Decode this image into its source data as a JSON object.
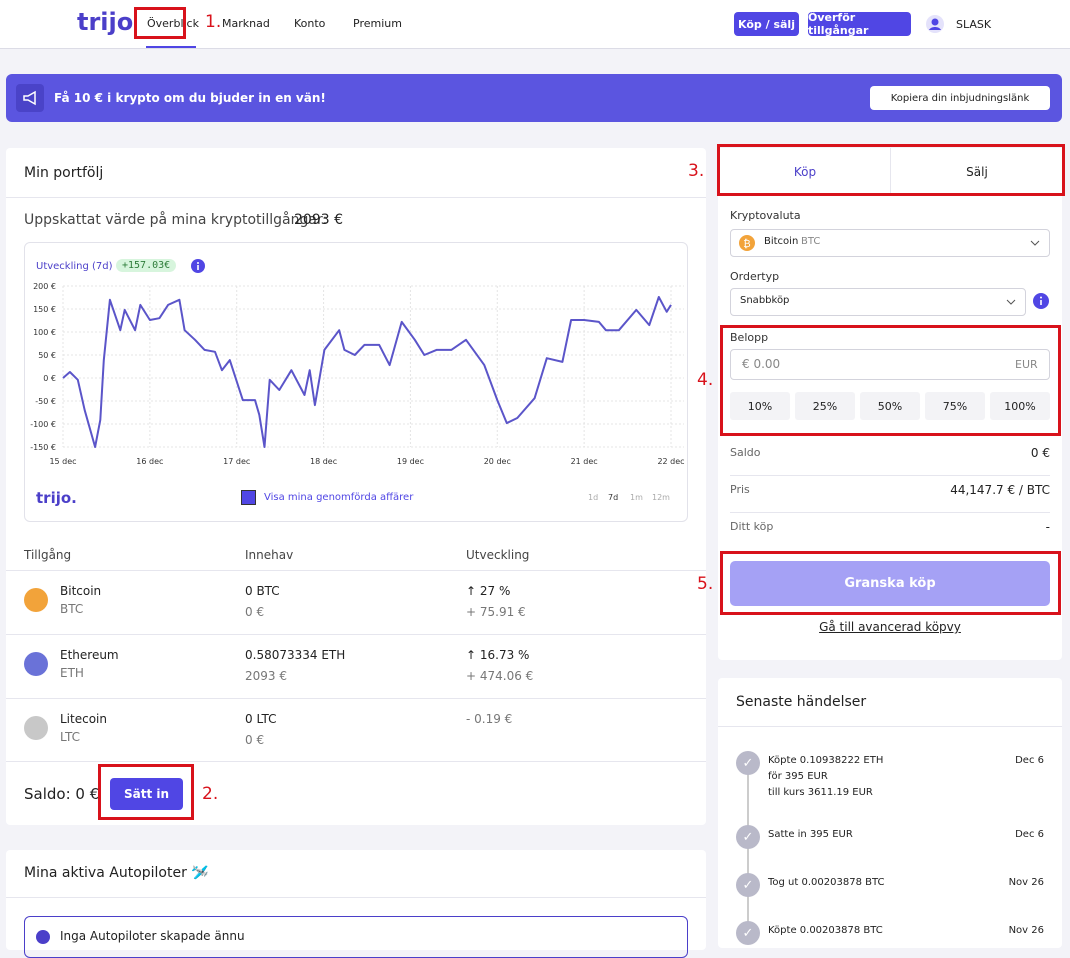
{
  "nav": {
    "logo": "trijo",
    "links": [
      "Överblick",
      "Marknad",
      "Konto",
      "Premium"
    ],
    "buttons": [
      "Köp / sälj",
      "Överför tillgångar"
    ],
    "user": "SLASK"
  },
  "banner": {
    "text": "Få 10 € i krypto om du bjuder in en vän!",
    "button": "Kopiera din inbjudningslänk"
  },
  "portfolio": {
    "title": "Min portfölj",
    "estimate": "Uppskattat värde på mina kryptotillgångar:",
    "estimate_value": "2093 €",
    "chart": {
      "type": "line",
      "label": "Utveckling (7d)",
      "badge": "+157.03€",
      "logo": "trijo.",
      "checkbox": "Visa mina genomförda affärer",
      "periods": [
        "1d",
        "7d",
        "1m",
        "12m"
      ],
      "color": "#5b55c9",
      "grid": true,
      "x": [
        0,
        0.08,
        0.17,
        0.25,
        0.37,
        0.43,
        0.47,
        0.54,
        0.66,
        0.71,
        0.83,
        0.89,
        1.0,
        1.11,
        1.21,
        1.34,
        1.4,
        1.52,
        1.63,
        1.75,
        1.83,
        1.92,
        2.07,
        2.21,
        2.26,
        2.32,
        2.38,
        2.49,
        2.63,
        2.78,
        2.84,
        2.9,
        3.01,
        3.18,
        3.24,
        3.36,
        3.47,
        3.64,
        3.76,
        3.9,
        4.05,
        4.16,
        4.3,
        4.47,
        4.64,
        4.85,
        5.0,
        5.11,
        5.23,
        5.43,
        5.57,
        5.75,
        5.85,
        6.0,
        6.17,
        6.25,
        6.4,
        6.6,
        6.75,
        6.86,
        6.95,
        7.0
      ],
      "values": [
        0,
        13,
        -4,
        -70,
        -150,
        -91,
        39,
        170,
        104,
        148,
        104,
        159,
        126,
        130,
        159,
        170,
        104,
        83,
        61,
        57,
        17,
        39,
        -48,
        -48,
        -80,
        -150,
        -4,
        -26,
        17,
        -37,
        17,
        -59,
        61,
        104,
        61,
        50,
        72,
        72,
        28,
        122,
        83,
        50,
        61,
        61,
        83,
        28,
        -48,
        -98,
        -87,
        -44,
        43,
        35,
        126,
        126,
        122,
        104,
        104,
        148,
        115,
        176,
        144,
        159
      ],
      "xlim": [
        0,
        7
      ],
      "xticks": [
        {
          "value": 0,
          "label": "15 dec"
        },
        {
          "value": 1,
          "label": "16 dec"
        },
        {
          "value": 2,
          "label": "17 dec"
        },
        {
          "value": 3,
          "label": "18 dec"
        },
        {
          "value": 4,
          "label": "19 dec"
        },
        {
          "value": 5,
          "label": "20 dec"
        },
        {
          "value": 6,
          "label": "21 dec"
        },
        {
          "value": 7,
          "label": "22 dec"
        }
      ],
      "ylim": [
        -150,
        200
      ],
      "yticks": [
        {
          "value": 200,
          "label": "200 €"
        },
        {
          "value": 150,
          "label": "150 €"
        },
        {
          "value": 100,
          "label": "100 €"
        },
        {
          "value": 50,
          "label": "50 €"
        },
        {
          "value": 0,
          "label": "0 €"
        },
        {
          "value": -50,
          "label": "-50 €"
        },
        {
          "value": -100,
          "label": "-100 €"
        },
        {
          "value": -150,
          "label": "-150 €"
        }
      ]
    },
    "table": {
      "headers": [
        "Tillgång",
        "Innehav",
        "Utveckling"
      ],
      "rows": [
        {
          "name": "Bitcoin",
          "symbol": "BTC",
          "holding": "0 BTC",
          "holding_eur": "0 €",
          "change": "↑ 27 %",
          "change_eur": "+ 75.91 €"
        },
        {
          "name": "Ethereum",
          "symbol": "ETH",
          "holding": "0.58073334 ETH",
          "holding_eur": "2093 €",
          "change": "↑ 16.73 %",
          "change_eur": "+ 474.06 €"
        },
        {
          "name": "Litecoin",
          "symbol": "LTC",
          "holding": "0 LTC",
          "holding_eur": "0 €",
          "change": "- 0.19 €",
          "change_eur": ""
        }
      ]
    },
    "balance": "Saldo: 0 €",
    "deposit": "Sätt in"
  },
  "autopilot": {
    "title": "Mina aktiva Autopiloter 🛩️",
    "notice": "Inga Autopiloter skapade ännu"
  },
  "trade": {
    "tabs": [
      "Köp",
      "Sälj"
    ],
    "crypto_label": "Kryptovaluta",
    "crypto": "Bitcoin",
    "crypto_symbol": "BTC",
    "order_label": "Ordertyp",
    "order": "Snabbköp",
    "amount_label": "Belopp",
    "amount_placeholder": "€ 0.00",
    "currency": "EUR",
    "percents": [
      "10%",
      "25%",
      "50%",
      "75%",
      "100%"
    ],
    "rows": [
      {
        "label": "Saldo",
        "value": "0 €"
      },
      {
        "label": "Pris",
        "value": "44,147.7 € / BTC"
      },
      {
        "label": "Ditt köp",
        "value": "-"
      }
    ],
    "review": "Granska köp",
    "advanced": "Gå till avancerad köpvy"
  },
  "events": {
    "title": "Senaste händelser",
    "items": [
      {
        "lines": [
          "Köpte 0.10938222 ETH",
          "för 395 EUR",
          "till kurs 3611.19 EUR"
        ],
        "date": "Dec 6"
      },
      {
        "lines": [
          "Satte in 395 EUR"
        ],
        "date": "Dec 6"
      },
      {
        "lines": [
          "Tog ut 0.00203878 BTC"
        ],
        "date": "Nov 26"
      },
      {
        "lines": [
          "Köpte 0.00203878 BTC"
        ],
        "date": "Nov 26"
      }
    ]
  },
  "annotations": [
    "1.",
    "2.",
    "3.",
    "4.",
    "5."
  ]
}
